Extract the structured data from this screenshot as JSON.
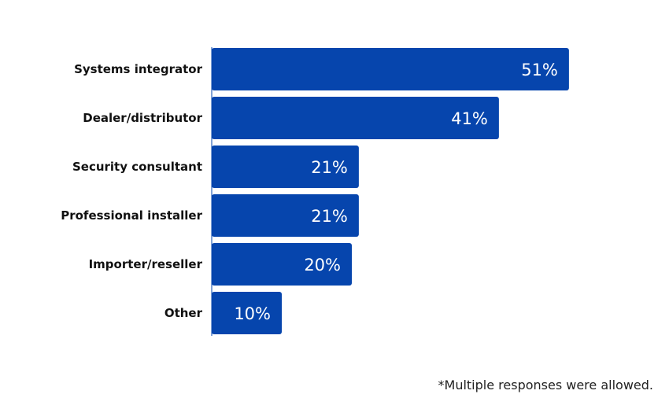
{
  "chart_data": {
    "type": "bar",
    "orientation": "horizontal",
    "categories": [
      "Systems integrator",
      "Dealer/distributor",
      "Security consultant",
      "Professional installer",
      "Importer/reseller",
      "Other"
    ],
    "values": [
      51,
      41,
      21,
      21,
      20,
      10
    ],
    "value_labels": [
      "51%",
      "41%",
      "21%",
      "21%",
      "20%",
      "10%"
    ],
    "unit": "%",
    "bar_color": "#0645ad",
    "grid": false,
    "legend": "none"
  },
  "footnote": "*Multiple responses were allowed."
}
